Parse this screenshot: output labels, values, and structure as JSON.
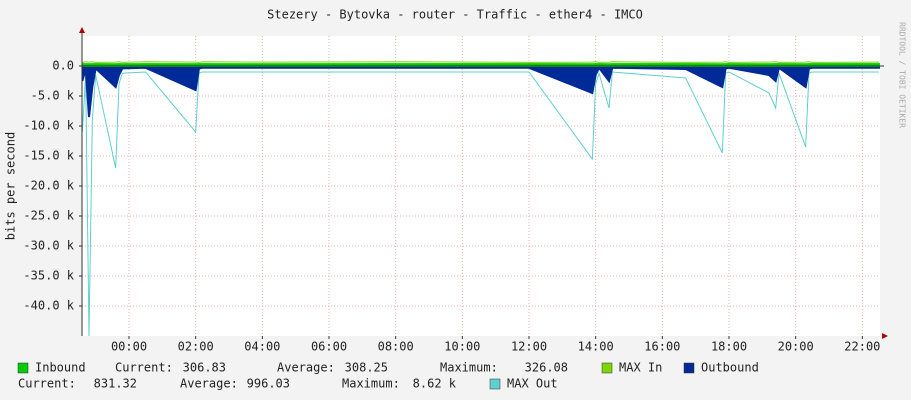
{
  "chart_data": {
    "type": "area",
    "title": "Stezery - Bytovka - router - Traffic - ether4 - IMCO",
    "y_label": "bits per second",
    "watermark": "RRDTOOL / TOBI OETIKER",
    "x": [
      -1.4,
      -1.3,
      -1.2,
      -1.1,
      -1.0,
      -0.4,
      -0.3,
      -0.2,
      0.5,
      2.0,
      2.1,
      2.2,
      4.0,
      8.0,
      12.0,
      13.9,
      14.0,
      14.1,
      14.4,
      14.5,
      16.7,
      17.8,
      17.9,
      18.0,
      19.2,
      19.4,
      19.5,
      20.3,
      20.4,
      20.5,
      22.5
    ],
    "xlim": [
      -1.41,
      22.53
    ],
    "xticks": [
      {
        "value": 0,
        "label": "00:00"
      },
      {
        "value": 2,
        "label": "02:00"
      },
      {
        "value": 4,
        "label": "04:00"
      },
      {
        "value": 6,
        "label": "06:00"
      },
      {
        "value": 8,
        "label": "08:00"
      },
      {
        "value": 10,
        "label": "10:00"
      },
      {
        "value": 12,
        "label": "12:00"
      },
      {
        "value": 14,
        "label": "14:00"
      },
      {
        "value": 16,
        "label": "16:00"
      },
      {
        "value": 18,
        "label": "18:00"
      },
      {
        "value": 20,
        "label": "20:00"
      },
      {
        "value": 22,
        "label": "22:00"
      }
    ],
    "ylim": [
      -45000,
      5000
    ],
    "yticks": [
      {
        "value": 0,
        "label": "0.0"
      },
      {
        "value": -5000,
        "label": "-5.0 k"
      },
      {
        "value": -10000,
        "label": "-10.0 k"
      },
      {
        "value": -15000,
        "label": "-15.0 k"
      },
      {
        "value": -20000,
        "label": "-20.0 k"
      },
      {
        "value": -25000,
        "label": "-25.0 k"
      },
      {
        "value": -30000,
        "label": "-30.0 k"
      },
      {
        "value": -35000,
        "label": "-35.0 k"
      },
      {
        "value": -40000,
        "label": "-40.0 k"
      }
    ],
    "grid": true,
    "series": [
      {
        "name": "Inbound",
        "color": "#00cc00",
        "style": "area",
        "values": [
          300,
          310,
          300,
          305,
          310,
          300,
          305,
          300,
          310,
          300,
          305,
          310,
          300,
          305,
          310,
          300,
          305,
          310,
          300,
          305,
          310,
          300,
          305,
          310,
          300,
          305,
          310,
          300,
          305,
          310,
          307
        ],
        "stats": [
          {
            "name": "Current:",
            "value": 306.83
          },
          {
            "name": "Average:",
            "value": 308.25
          },
          {
            "name": "Maximum:",
            "value": 326.08
          }
        ]
      },
      {
        "name": "MAX In",
        "color": "#7ed600",
        "style": "line",
        "values": [
          600,
          700,
          650,
          700,
          600,
          650,
          700,
          600,
          700,
          650,
          600,
          700,
          650,
          700,
          600,
          650,
          700,
          600,
          650,
          700,
          600,
          650,
          700,
          600,
          650,
          700,
          600,
          650,
          700,
          600,
          650
        ]
      },
      {
        "name": "Outbound",
        "color": "#002a97",
        "style": "area",
        "values": [
          -2500,
          -500,
          -8500,
          -3500,
          -400,
          -3500,
          -1500,
          -400,
          -300,
          -4000,
          -400,
          -300,
          -300,
          -300,
          -300,
          -4500,
          -1500,
          -300,
          -2500,
          -300,
          -500,
          -3500,
          -400,
          -300,
          -1500,
          -2500,
          -300,
          -3500,
          -400,
          -300,
          -300
        ],
        "stats": [
          {
            "name": "Current:",
            "value": 831.32
          },
          {
            "name": "Average:",
            "value": 996.03
          },
          {
            "name": "Maximum:",
            "value": 8620,
            "label": "8.62 k"
          }
        ]
      },
      {
        "name": "MAX Out",
        "color": "#5fcfcf",
        "style": "line",
        "values": [
          -11000,
          -1500,
          -45000,
          -9000,
          -1500,
          -17000,
          -3000,
          -1200,
          -1000,
          -11000,
          -1200,
          -1000,
          -1000,
          -1000,
          -1000,
          -15500,
          -3000,
          -1200,
          -7000,
          -1000,
          -2000,
          -14500,
          -1200,
          -1000,
          -4500,
          -7000,
          -1200,
          -13500,
          -1200,
          -1000,
          -1000
        ]
      }
    ]
  }
}
